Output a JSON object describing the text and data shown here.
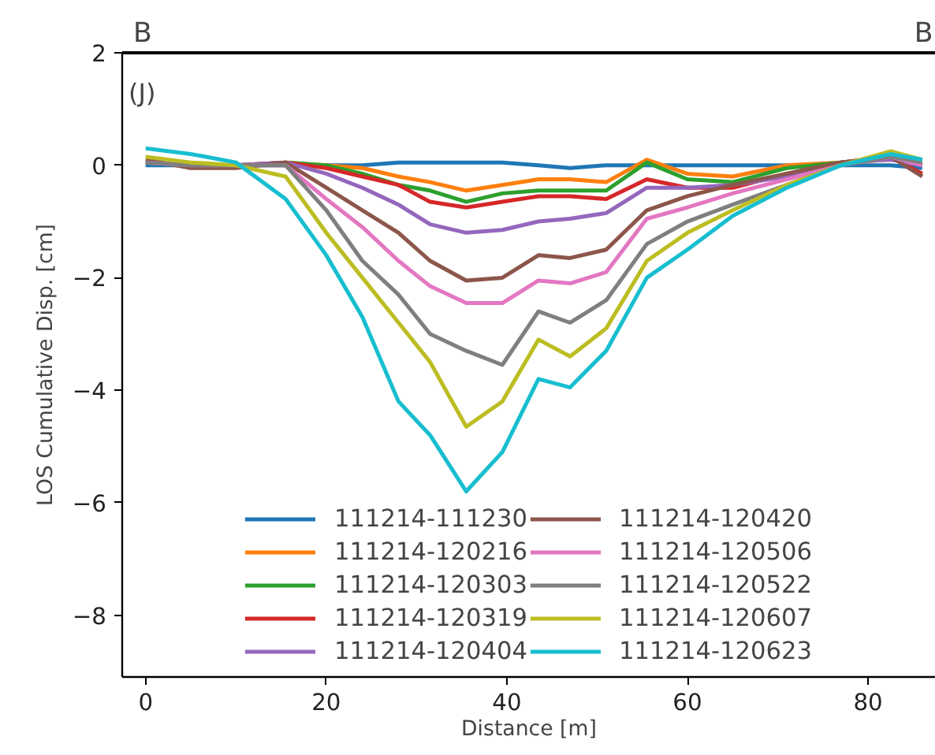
{
  "chart_data": {
    "type": "line",
    "xlabel": "Distance [m]",
    "ylabel": "LOS Cumulative Disp. [cm]",
    "annotations": [
      "(J)",
      "B",
      "B"
    ],
    "x": [
      0,
      5,
      10,
      15.5,
      20,
      24,
      28,
      31.5,
      35.5,
      39.5,
      43.5,
      47,
      51,
      55.5,
      60,
      65,
      71,
      77,
      82.5,
      86
    ],
    "xlim": [
      -2.6,
      87.5
    ],
    "xticks": [
      0,
      20,
      40,
      60,
      80
    ],
    "ylim": [
      -9.1,
      2
    ],
    "yticks": [
      {
        "value": -8,
        "label": "−8"
      },
      {
        "value": -6,
        "label": "−6"
      },
      {
        "value": -4,
        "label": "−4"
      },
      {
        "value": -2,
        "label": "−2"
      },
      0,
      2
    ],
    "grid": false,
    "legend": "bottom",
    "line_style": "solid",
    "marker": "none",
    "series": [
      {
        "name": "111214-111230",
        "color": "#1f77b4",
        "values": [
          0.0,
          0.0,
          0.0,
          0.0,
          0.0,
          0.0,
          0.05,
          0.05,
          0.05,
          0.05,
          0.0,
          -0.05,
          0.0,
          0.0,
          0.0,
          0.0,
          0.0,
          0.0,
          0.0,
          -0.05
        ]
      },
      {
        "name": "111214-120216",
        "color": "#ff7f0e",
        "x": [
          15.5,
          20,
          24,
          28,
          31.5,
          35.5,
          39.5,
          43.5,
          47,
          51,
          55.5,
          60,
          65,
          71,
          77,
          82.5,
          86
        ],
        "values": [
          0.05,
          0.0,
          -0.05,
          -0.2,
          -0.3,
          -0.45,
          -0.35,
          -0.25,
          -0.25,
          -0.3,
          0.1,
          -0.15,
          -0.2,
          0.0,
          0.05,
          0.1,
          0.05
        ]
      },
      {
        "name": "111214-120303",
        "color": "#2ca02c",
        "values": [
          0.05,
          0.0,
          0.0,
          0.05,
          0.0,
          -0.15,
          -0.35,
          -0.45,
          -0.65,
          -0.5,
          -0.45,
          -0.45,
          -0.45,
          0.05,
          -0.25,
          -0.3,
          -0.05,
          0.05,
          0.15,
          0.0
        ]
      },
      {
        "name": "111214-120319",
        "color": "#d62728",
        "x": [
          10,
          15.5,
          20,
          24,
          28,
          31.5,
          35.5,
          39.5,
          43.5,
          47,
          51,
          55.5,
          60,
          65,
          71,
          77,
          82.5,
          86
        ],
        "values": [
          0.0,
          0.05,
          -0.05,
          -0.2,
          -0.35,
          -0.65,
          -0.75,
          -0.65,
          -0.55,
          -0.55,
          -0.6,
          -0.25,
          -0.4,
          -0.4,
          -0.15,
          0.05,
          0.15,
          -0.15
        ]
      },
      {
        "name": "111214-120404",
        "color": "#9467bd",
        "values": [
          0.05,
          0.0,
          0.0,
          0.05,
          -0.15,
          -0.4,
          -0.7,
          -1.05,
          -1.2,
          -1.15,
          -1.0,
          -0.95,
          -0.85,
          -0.4,
          -0.4,
          -0.35,
          -0.2,
          0.05,
          0.1,
          0.0
        ]
      },
      {
        "name": "111214-120420",
        "color": "#8c564b",
        "values": [
          0.1,
          -0.05,
          -0.05,
          0.05,
          -0.4,
          -0.8,
          -1.2,
          -1.7,
          -2.05,
          -2.0,
          -1.6,
          -1.65,
          -1.5,
          -0.8,
          -0.55,
          -0.35,
          -0.15,
          0.05,
          0.15,
          -0.2
        ]
      },
      {
        "name": "111214-120506",
        "color": "#e377c2",
        "values": [
          0.05,
          0.0,
          0.0,
          0.0,
          -0.6,
          -1.1,
          -1.7,
          -2.15,
          -2.45,
          -2.45,
          -2.05,
          -2.1,
          -1.9,
          -0.95,
          -0.75,
          -0.5,
          -0.25,
          0.0,
          0.15,
          0.0
        ]
      },
      {
        "name": "111214-120522",
        "color": "#7f7f7f",
        "values": [
          0.05,
          0.0,
          0.0,
          0.0,
          -0.8,
          -1.7,
          -2.3,
          -3.0,
          -3.3,
          -3.55,
          -2.6,
          -2.8,
          -2.4,
          -1.4,
          -1.0,
          -0.7,
          -0.35,
          0.0,
          0.15,
          0.05
        ]
      },
      {
        "name": "111214-120607",
        "color": "#bcbd22",
        "values": [
          0.15,
          0.05,
          0.0,
          -0.2,
          -1.2,
          -2.0,
          -2.8,
          -3.5,
          -4.65,
          -4.2,
          -3.1,
          -3.4,
          -2.9,
          -1.7,
          -1.2,
          -0.8,
          -0.35,
          0.0,
          0.25,
          0.1
        ]
      },
      {
        "name": "111214-120623",
        "color": "#17becf",
        "values": [
          0.3,
          0.2,
          0.05,
          -0.6,
          -1.6,
          -2.7,
          -4.2,
          -4.8,
          -5.8,
          -5.1,
          -3.8,
          -3.95,
          -3.3,
          -2.0,
          -1.5,
          -0.9,
          -0.4,
          0.0,
          0.2,
          0.1
        ]
      }
    ]
  }
}
